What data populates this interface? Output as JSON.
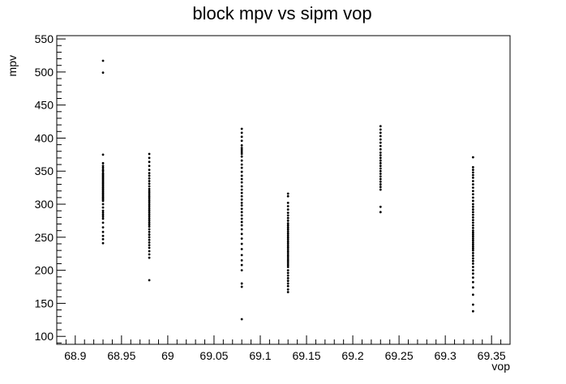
{
  "chart_data": {
    "type": "scatter",
    "title": "block mpv vs sipm vop",
    "xlabel": "vop",
    "ylabel": "mpv",
    "xlim": [
      68.88,
      69.37
    ],
    "ylim": [
      88,
      555
    ],
    "x_ticks": [
      "68.9",
      "68.95",
      "69",
      "69.05",
      "69.1",
      "69.15",
      "69.2",
      "69.25",
      "69.3",
      "69.35"
    ],
    "y_ticks": [
      "100",
      "150",
      "200",
      "250",
      "300",
      "350",
      "400",
      "450",
      "500",
      "550"
    ],
    "grid": false,
    "legend": "none",
    "marker_color": "#000000",
    "series": [
      {
        "x": 68.93,
        "y": [
          517,
          499,
          375,
          362,
          358,
          355,
          352,
          350,
          347,
          345,
          343,
          341,
          339,
          337,
          335,
          333,
          331,
          329,
          327,
          325,
          323,
          321,
          319,
          317,
          315,
          313,
          311,
          309,
          307,
          305,
          300,
          295,
          290,
          287,
          284,
          281,
          278,
          272,
          265,
          258,
          252,
          247,
          241
        ]
      },
      {
        "x": 68.98,
        "y": [
          376,
          370,
          364,
          358,
          352,
          347,
          343,
          339,
          335,
          331,
          327,
          323,
          320,
          317,
          314,
          311,
          308,
          305,
          302,
          299,
          296,
          293,
          290,
          287,
          284,
          281,
          278,
          275,
          272,
          269,
          266,
          262,
          258,
          254,
          250,
          246,
          242,
          238,
          234,
          229,
          224,
          219,
          185
        ]
      },
      {
        "x": 69.08,
        "y": [
          414,
          408,
          402,
          396,
          389,
          385,
          382,
          379,
          376,
          372,
          366,
          360,
          355,
          349,
          343,
          338,
          333,
          327,
          322,
          317,
          312,
          307,
          302,
          298,
          293,
          288,
          283,
          278,
          273,
          268,
          262,
          255,
          248,
          240,
          232,
          223,
          215,
          208,
          200,
          180,
          175,
          126
        ]
      },
      {
        "x": 69.13,
        "y": [
          316,
          312,
          302,
          297,
          292,
          287,
          283,
          279,
          275,
          271,
          268,
          265,
          262,
          259,
          256,
          253,
          250,
          247,
          244,
          241,
          238,
          235,
          232,
          229,
          226,
          223,
          220,
          217,
          214,
          211,
          208,
          205,
          200,
          196,
          192,
          188,
          184,
          180,
          176,
          171,
          167
        ]
      },
      {
        "x": 69.23,
        "y": [
          418,
          413,
          408,
          403,
          398,
          393,
          388,
          383,
          378,
          374,
          370,
          366,
          362,
          358,
          354,
          350,
          346,
          342,
          338,
          334,
          330,
          326,
          322,
          296,
          288
        ]
      },
      {
        "x": 69.33,
        "y": [
          371,
          356,
          352,
          348,
          344,
          340,
          335,
          330,
          325,
          320,
          315,
          310,
          305,
          300,
          296,
          292,
          288,
          284,
          280,
          276,
          272,
          268,
          264,
          260,
          257,
          254,
          251,
          248,
          245,
          242,
          239,
          236,
          233,
          230,
          226,
          222,
          218,
          214,
          210,
          205,
          200,
          195,
          189,
          182,
          174,
          163,
          148,
          138
        ]
      }
    ]
  }
}
